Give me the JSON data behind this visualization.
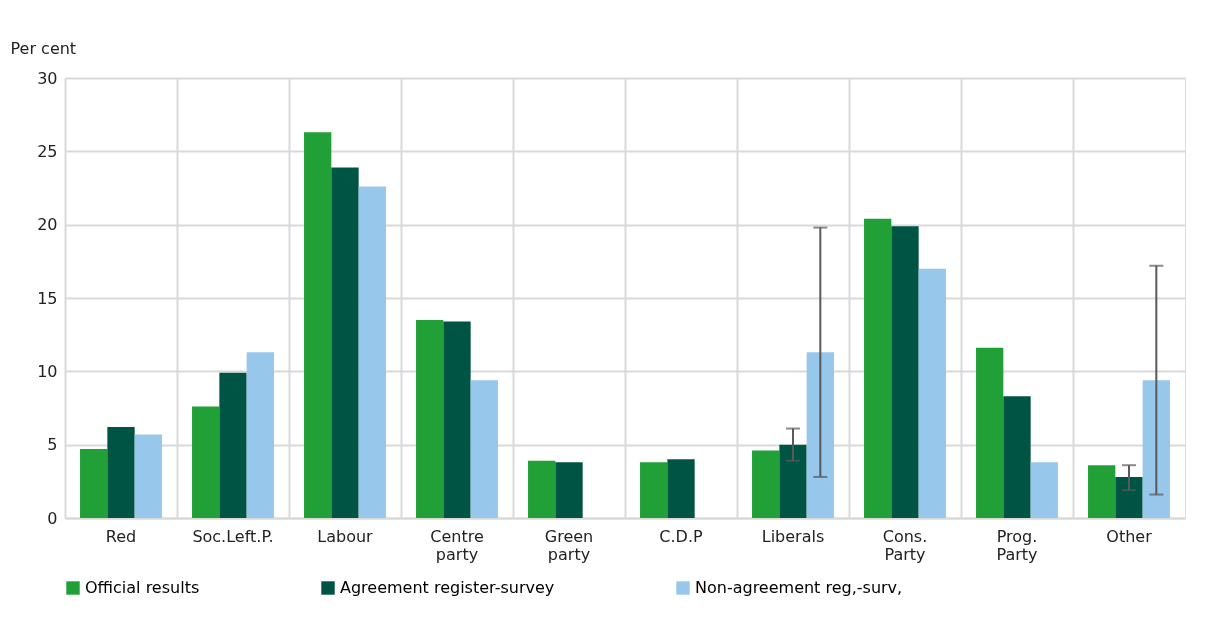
{
  "chart_data": {
    "type": "bar",
    "ylabel": "Per cent",
    "categories": [
      "Red",
      "Soc.Left.P.",
      "Labour",
      "Centre party",
      "Green party",
      "C.D.P",
      "Liberals",
      "Cons. Party",
      "Prog. Party",
      "Other"
    ],
    "series": [
      {
        "name": "Official results",
        "color": "#21a038",
        "values": [
          4.7,
          7.6,
          26.3,
          13.5,
          3.9,
          3.8,
          4.6,
          20.4,
          11.6,
          3.6
        ]
      },
      {
        "name": "Agreement register-survey",
        "color": "#005444",
        "values": [
          6.2,
          9.9,
          23.9,
          13.4,
          3.8,
          4.0,
          5.0,
          19.9,
          8.3,
          2.8
        ],
        "errors": [
          null,
          null,
          null,
          null,
          null,
          null,
          [
            3.9,
            6.1
          ],
          null,
          null,
          [
            1.9,
            3.6
          ]
        ]
      },
      {
        "name": "Non-agreement reg,-surv,",
        "color": "#97c7eb",
        "values": [
          5.7,
          11.3,
          22.6,
          9.4,
          0,
          0,
          11.3,
          17.0,
          3.8,
          9.4
        ],
        "errors": [
          null,
          null,
          null,
          null,
          null,
          null,
          [
            2.8,
            19.8
          ],
          null,
          null,
          [
            1.6,
            17.2
          ]
        ]
      }
    ],
    "ylim": [
      0,
      30
    ],
    "yticks": [
      0,
      5,
      10,
      15,
      20,
      25,
      30
    ],
    "grid": true,
    "legend": "bottom"
  }
}
